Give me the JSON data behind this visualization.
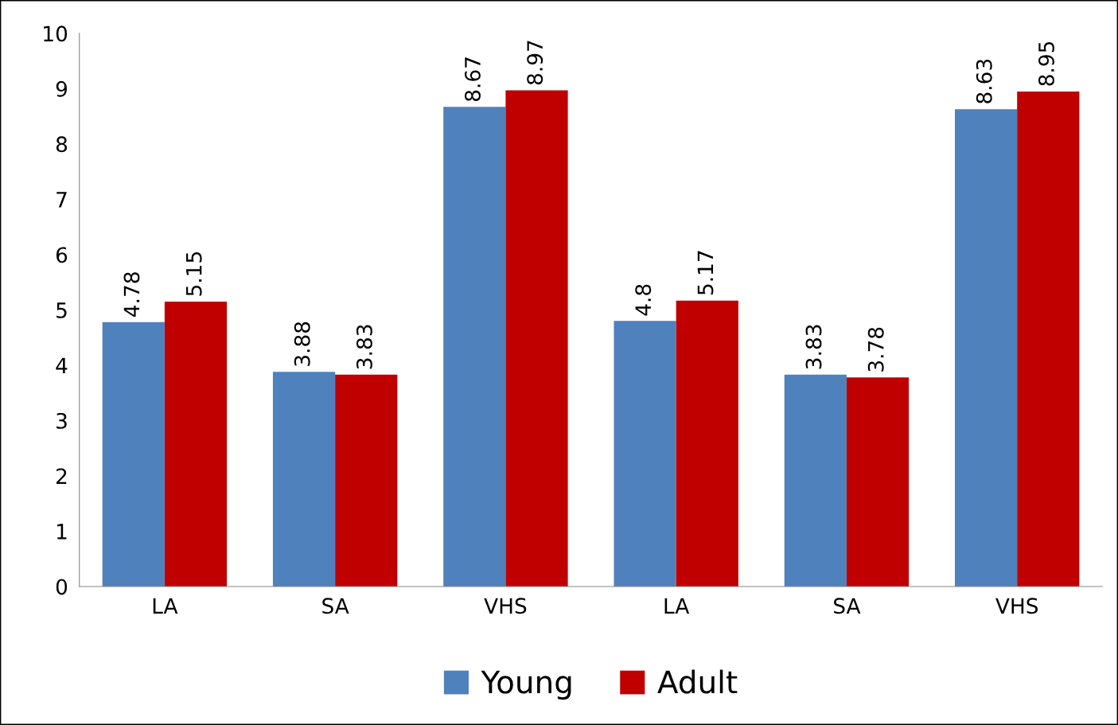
{
  "chart_data": {
    "type": "bar",
    "categories": [
      "LA",
      "SA",
      "VHS",
      "LA",
      "SA",
      "VHS"
    ],
    "series": [
      {
        "name": "Young",
        "color": "#4f81bd",
        "values": [
          4.78,
          3.88,
          8.67,
          4.8,
          3.83,
          8.63
        ]
      },
      {
        "name": "Adult",
        "color": "#c00000",
        "values": [
          5.15,
          3.83,
          8.97,
          5.17,
          3.78,
          8.95
        ]
      }
    ],
    "ylim": [
      0,
      10
    ],
    "yticks": [
      0,
      1,
      2,
      3,
      4,
      5,
      6,
      7,
      8,
      9,
      10
    ],
    "data_labels": true,
    "legend": "bottom",
    "grid": false
  }
}
